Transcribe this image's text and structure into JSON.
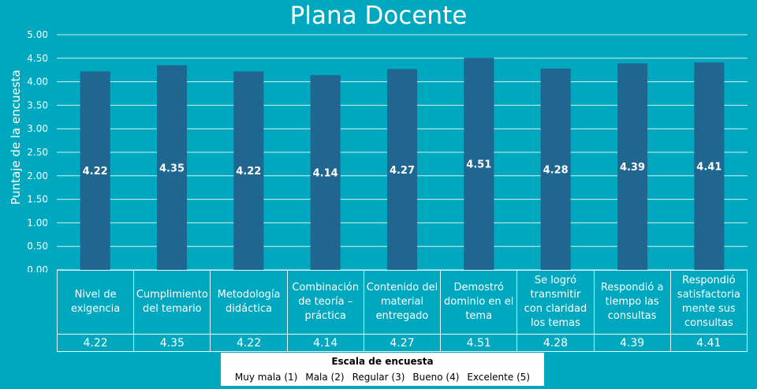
{
  "chart_data": {
    "type": "bar",
    "title": "Plana Docente",
    "ylabel": "Puntaje de la encuesta",
    "xlabel": "",
    "ylim": [
      0,
      5
    ],
    "yticks": [
      "0.00",
      "0.50",
      "1.00",
      "1.50",
      "2.00",
      "2.50",
      "3.00",
      "3.50",
      "4.00",
      "4.50",
      "5.00"
    ],
    "grid": true,
    "bar_color": "#1f6691",
    "categories": [
      "Nivel de exigencia",
      "Cumplimiento del temario",
      "Metodología didáctica",
      "Combinación de teoría – práctica",
      "Contenido del material entregado",
      "Demostró dominio en el tema",
      "Se logró transmitir con claridad los temas",
      "Respondió a tiempo las consultas",
      "Respondió satisfactoriamente sus consultas"
    ],
    "category_labels_display": [
      [
        "Nivel de",
        "exigencia"
      ],
      [
        "Cumplimiento",
        "del temario"
      ],
      [
        "Metodología",
        "didáctica"
      ],
      [
        "Combinación",
        "de teoría –",
        "práctica"
      ],
      [
        "Contenido del",
        "material",
        "entregado"
      ],
      [
        "Demostró",
        "dominio en el",
        "tema"
      ],
      [
        "Se logró",
        "transmitir",
        "con claridad",
        "los temas"
      ],
      [
        "Respondió a",
        "tiempo las",
        "consultas"
      ],
      [
        "Respondió",
        "satisfactoria",
        "mente sus",
        "consultas"
      ]
    ],
    "values": [
      4.22,
      4.35,
      4.22,
      4.14,
      4.27,
      4.51,
      4.28,
      4.39,
      4.41
    ],
    "value_labels": [
      "4.22",
      "4.35",
      "4.22",
      "4.14",
      "4.27",
      "4.51",
      "4.28",
      "4.39",
      "4.41"
    ]
  },
  "scale": {
    "title": "Escala de encuesta",
    "items": [
      "Muy mala (1)",
      "Mala (2)",
      "Regular (3)",
      "Bueno (4)",
      "Excelente (5)"
    ]
  }
}
